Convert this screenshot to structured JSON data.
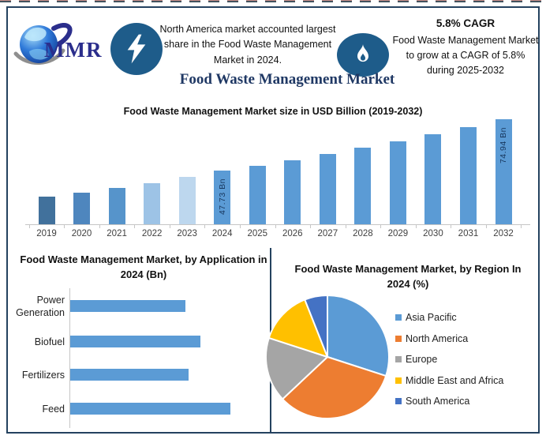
{
  "page": {
    "title": "Food Waste Management Market"
  },
  "header": {
    "logo_text": "MMR",
    "left_note": "North America market accounted largest share in the Food Waste Management Market in 2024.",
    "cagr_title": "5.8% CAGR",
    "cagr_note": "Food Waste Management Market to grow at a CAGR of 5.8% during 2025-2032"
  },
  "icons": {
    "logo": "globe-with-swoosh",
    "bolt_badge": "lightning-bolt",
    "flame_badge": "flame"
  },
  "colors": {
    "frame_border": "#24425F",
    "accent_navy": "#1F3864",
    "badge_blue": "#1E5C8A",
    "logo_text_blue": "#2B2E8C",
    "bar_blue": "#5B9BD5",
    "axis_gray": "#C6C6C6"
  },
  "chart_data": [
    {
      "type": "bar",
      "title": "Food Waste Management Market size in USD Billion (2019-2032)",
      "ylabel": "USD Billion",
      "categories": [
        "2019",
        "2020",
        "2021",
        "2022",
        "2023",
        "2024",
        "2025",
        "2026",
        "2027",
        "2028",
        "2029",
        "2030",
        "2031",
        "2032"
      ],
      "values": [
        34.0,
        36.0,
        38.6,
        41.3,
        44.3,
        47.73,
        50.5,
        53.43,
        56.53,
        59.81,
        63.28,
        66.95,
        70.83,
        74.94
      ],
      "bar_colors": [
        "#41719C",
        "#4E86BE",
        "#5694CB",
        "#9DC3E6",
        "#BDD7EE",
        "#5B9BD5",
        "#5B9BD5",
        "#5B9BD5",
        "#5B9BD5",
        "#5B9BD5",
        "#5B9BD5",
        "#5B9BD5",
        "#5B9BD5",
        "#5B9BD5"
      ],
      "value_labels": {
        "2024": "47.73 Bn",
        "2032": "74.94 Bn"
      },
      "ylim": [
        19.5,
        80
      ],
      "grid": false,
      "legend": false
    },
    {
      "type": "bar",
      "orientation": "horizontal",
      "title": "Food Waste Management Market, by Application in 2024 (Bn)",
      "categories": [
        "Power Generation",
        "Biofuel",
        "Fertilizers",
        "Feed"
      ],
      "values": [
        10.4,
        11.8,
        10.7,
        14.5
      ],
      "bar_color": "#5B9BD5",
      "xlim": [
        0,
        16
      ],
      "grid": false,
      "legend": false
    },
    {
      "type": "pie",
      "title": "Food Waste Management Market, by Region In 2024 (%)",
      "labels": [
        "Asia Pacific",
        "North America",
        "Europe",
        "Middle East and Africa",
        "South America"
      ],
      "values": [
        30,
        33,
        17,
        14,
        6
      ],
      "colors": [
        "#5B9BD5",
        "#ED7D31",
        "#A5A5A5",
        "#FFC000",
        "#4472C4"
      ],
      "start_angle_deg": 0,
      "clockwise": true,
      "legend_position": "right"
    }
  ]
}
